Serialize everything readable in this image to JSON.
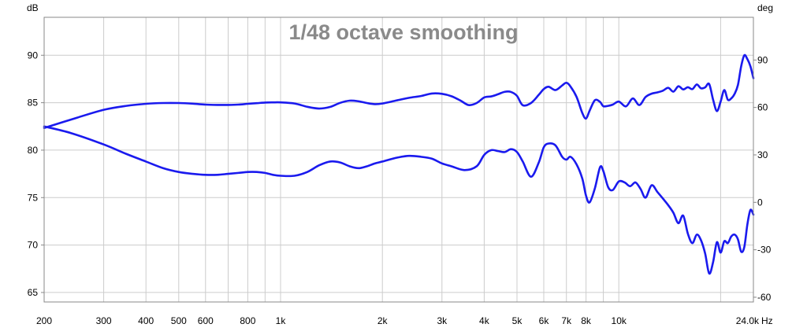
{
  "chart_data": {
    "type": "line",
    "title": "1/48 octave smoothing",
    "left_axis_unit": "dB",
    "right_axis_unit": "deg",
    "x_unit": "Hz",
    "x_scale": "log",
    "x_range": [
      200,
      25000
    ],
    "y_left_range": [
      64,
      94
    ],
    "y_right_range": [
      -63,
      117
    ],
    "x_tick_labels": [
      {
        "v": 200,
        "t": "200"
      },
      {
        "v": 300,
        "t": "300"
      },
      {
        "v": 400,
        "t": "400"
      },
      {
        "v": 500,
        "t": "500"
      },
      {
        "v": 600,
        "t": "600"
      },
      {
        "v": 800,
        "t": "800"
      },
      {
        "v": 1000,
        "t": "1k"
      },
      {
        "v": 2000,
        "t": "2k"
      },
      {
        "v": 3000,
        "t": "3k"
      },
      {
        "v": 4000,
        "t": "4k"
      },
      {
        "v": 5000,
        "t": "5k"
      },
      {
        "v": 6000,
        "t": "6k"
      },
      {
        "v": 7000,
        "t": "7k"
      },
      {
        "v": 8000,
        "t": "8k"
      },
      {
        "v": 10000,
        "t": "10k"
      },
      {
        "v": 24000,
        "t": "24.0k"
      }
    ],
    "x_gridlines": [
      200,
      300,
      400,
      500,
      600,
      700,
      800,
      900,
      1000,
      2000,
      3000,
      4000,
      5000,
      6000,
      7000,
      8000,
      9000,
      10000,
      20000
    ],
    "y_left_ticks": [
      65,
      70,
      75,
      80,
      85,
      90
    ],
    "y_right_ticks": [
      -60,
      -30,
      0,
      30,
      60,
      90
    ],
    "grid": true,
    "line_color": "#1a1aee",
    "series": [
      {
        "axis": "left",
        "x": [
          200,
          240,
          300,
          350,
          400,
          450,
          500,
          550,
          600,
          650,
          700,
          750,
          800,
          850,
          900,
          950,
          1000,
          1100,
          1200,
          1300,
          1400,
          1500,
          1600,
          1700,
          1800,
          1900,
          2000,
          2200,
          2400,
          2600,
          2800,
          3000,
          3200,
          3500,
          3800,
          4000,
          4200,
          4400,
          4600,
          4800,
          5000,
          5200,
          5500,
          5800,
          6000,
          6200,
          6500,
          6800,
          7000,
          7200,
          7500,
          7800,
          8000,
          8200,
          8500,
          8800,
          9000,
          9300,
          9600,
          10000,
          10400,
          10800,
          11200,
          11600,
          12000,
          12500,
          13000,
          13500,
          14000,
          14500,
          15000,
          15500,
          16000,
          16500,
          17000,
          17500,
          18000,
          18500,
          19000,
          19500,
          20000,
          20500,
          21000,
          21500,
          22000,
          22500,
          23000,
          23500,
          24000,
          24500,
          25000
        ],
        "y": [
          82.5,
          81.8,
          80.6,
          79.6,
          78.8,
          78.1,
          77.7,
          77.5,
          77.4,
          77.4,
          77.5,
          77.6,
          77.7,
          77.7,
          77.6,
          77.4,
          77.3,
          77.3,
          77.7,
          78.4,
          78.8,
          78.7,
          78.3,
          78.1,
          78.3,
          78.6,
          78.8,
          79.2,
          79.4,
          79.3,
          79.1,
          78.6,
          78.3,
          77.9,
          78.3,
          79.5,
          80.0,
          79.9,
          79.8,
          80.1,
          79.8,
          78.8,
          77.2,
          78.7,
          80.3,
          80.7,
          80.5,
          79.3,
          79.0,
          79.3,
          78.5,
          77.0,
          75.2,
          74.5,
          76.0,
          78.2,
          77.8,
          76.1,
          75.8,
          76.7,
          76.6,
          76.2,
          76.6,
          75.9,
          75.0,
          76.3,
          75.6,
          74.9,
          74.2,
          73.4,
          72.3,
          73.1,
          71.2,
          70.2,
          71.1,
          70.5,
          69.1,
          67.0,
          68.2,
          70.3,
          69.2,
          70.4,
          70.2,
          70.9,
          71.1,
          70.6,
          69.3,
          69.8,
          72.2,
          73.7,
          73.2
        ]
      },
      {
        "axis": "right",
        "x": [
          200,
          250,
          300,
          350,
          400,
          450,
          500,
          550,
          600,
          650,
          700,
          750,
          800,
          850,
          900,
          950,
          1000,
          1100,
          1200,
          1300,
          1400,
          1500,
          1600,
          1700,
          1800,
          1900,
          2000,
          2200,
          2400,
          2600,
          2800,
          3000,
          3200,
          3400,
          3600,
          3800,
          4000,
          4200,
          4400,
          4600,
          4800,
          5000,
          5200,
          5500,
          5800,
          6000,
          6200,
          6500,
          6800,
          7000,
          7200,
          7500,
          7800,
          8000,
          8200,
          8500,
          8800,
          9000,
          9300,
          9600,
          10000,
          10500,
          11000,
          11500,
          12000,
          12500,
          13000,
          13500,
          14000,
          14500,
          15000,
          15500,
          16000,
          16500,
          17000,
          17500,
          18000,
          18500,
          19000,
          19500,
          20000,
          20500,
          21000,
          21500,
          22000,
          22500,
          23000,
          23500,
          24000,
          24500,
          25000
        ],
        "y": [
          47.0,
          53.5,
          58.5,
          61.0,
          62.3,
          62.8,
          62.8,
          62.4,
          61.8,
          61.6,
          61.6,
          61.8,
          62.3,
          62.7,
          63.1,
          63.2,
          63.2,
          62.5,
          60.4,
          59.3,
          60.3,
          62.9,
          64.3,
          63.9,
          62.8,
          62.1,
          62.5,
          64.4,
          66.1,
          67.2,
          68.8,
          68.6,
          67.1,
          64.4,
          61.5,
          62.8,
          66.3,
          67.0,
          68.4,
          69.9,
          69.8,
          67.3,
          61.4,
          62.8,
          68.0,
          71.6,
          73.1,
          71.0,
          73.9,
          75.6,
          73.2,
          66.7,
          56.5,
          53.0,
          58.0,
          64.6,
          63.5,
          60.8,
          61.0,
          61.8,
          63.7,
          60.7,
          65.7,
          61.5,
          66.6,
          68.7,
          69.5,
          70.6,
          72.4,
          70.0,
          73.4,
          71.4,
          72.8,
          71.6,
          74.5,
          72.1,
          72.7,
          74.8,
          64.9,
          57.7,
          63.7,
          71.0,
          64.9,
          65.7,
          68.6,
          74.2,
          86.0,
          93.0,
          90.5,
          86.0,
          78.5
        ]
      }
    ]
  }
}
